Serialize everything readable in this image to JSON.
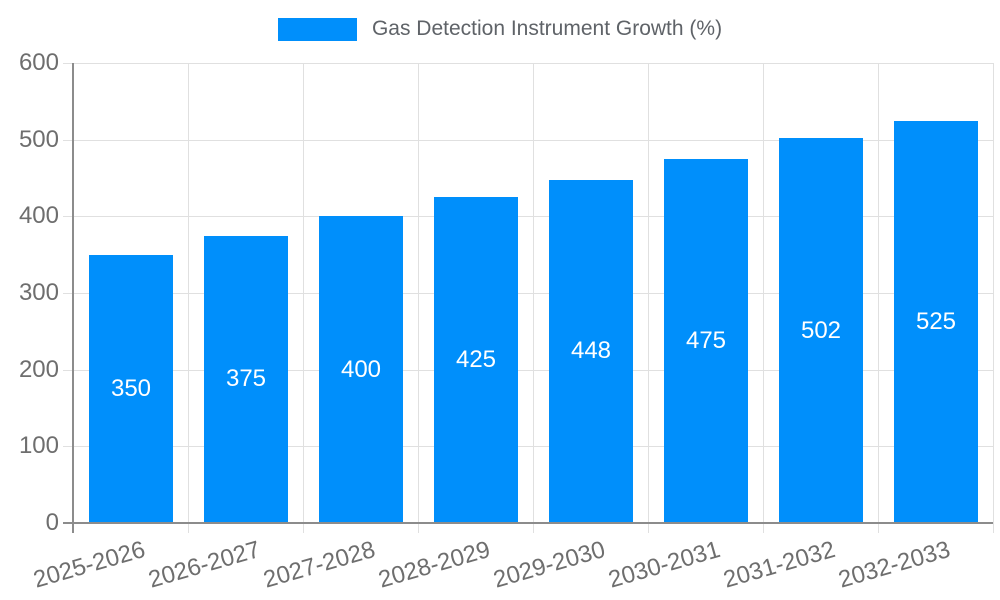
{
  "chart_data": {
    "type": "bar",
    "legend": "Gas Detection Instrument Growth (%)",
    "categories": [
      "2025-2026",
      "2026-2027",
      "2027-2028",
      "2028-2029",
      "2029-2030",
      "2030-2031",
      "2031-2032",
      "2032-2033"
    ],
    "values": [
      350,
      375,
      400,
      425,
      448,
      475,
      502,
      525
    ],
    "yticks": [
      0,
      100,
      200,
      300,
      400,
      500,
      600
    ],
    "ylim": [
      0,
      600
    ],
    "xlabel": "",
    "ylabel": "",
    "grid": true,
    "legend_position": "top",
    "value_labels_position": "inside-center",
    "colors": {
      "bar": "#008FFB",
      "gridline": "#e0e0e0",
      "axis_line": "#8c8c8c",
      "tick_text": "#6e6e6e",
      "legend_text": "#5f6368",
      "value_text": "#ffffff"
    }
  }
}
